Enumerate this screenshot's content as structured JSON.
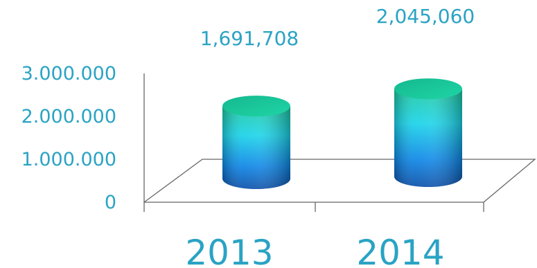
{
  "chart_data": {
    "type": "bar",
    "style": "3d-cylinder",
    "categories": [
      "2013",
      "2014"
    ],
    "values": [
      1691708,
      2045060
    ],
    "data_labels": [
      "1,691,708",
      "2,045,060"
    ],
    "y_ticks": [
      {
        "value": 0,
        "label": "0"
      },
      {
        "value": 1000000,
        "label": "1.000.000"
      },
      {
        "value": 2000000,
        "label": "2.000.000"
      },
      {
        "value": 3000000,
        "label": "3.000.000"
      }
    ],
    "ylim": [
      0,
      3000000
    ],
    "title": "",
    "xlabel": "",
    "ylabel": "",
    "grid": false,
    "legend": "none",
    "colors": {
      "text": "#2aa3c4",
      "axis": "#666666",
      "bar_top": "#1ec9a0",
      "bar_mid": "#19d3e8",
      "bar_bottom": "#0a5bb8"
    }
  }
}
